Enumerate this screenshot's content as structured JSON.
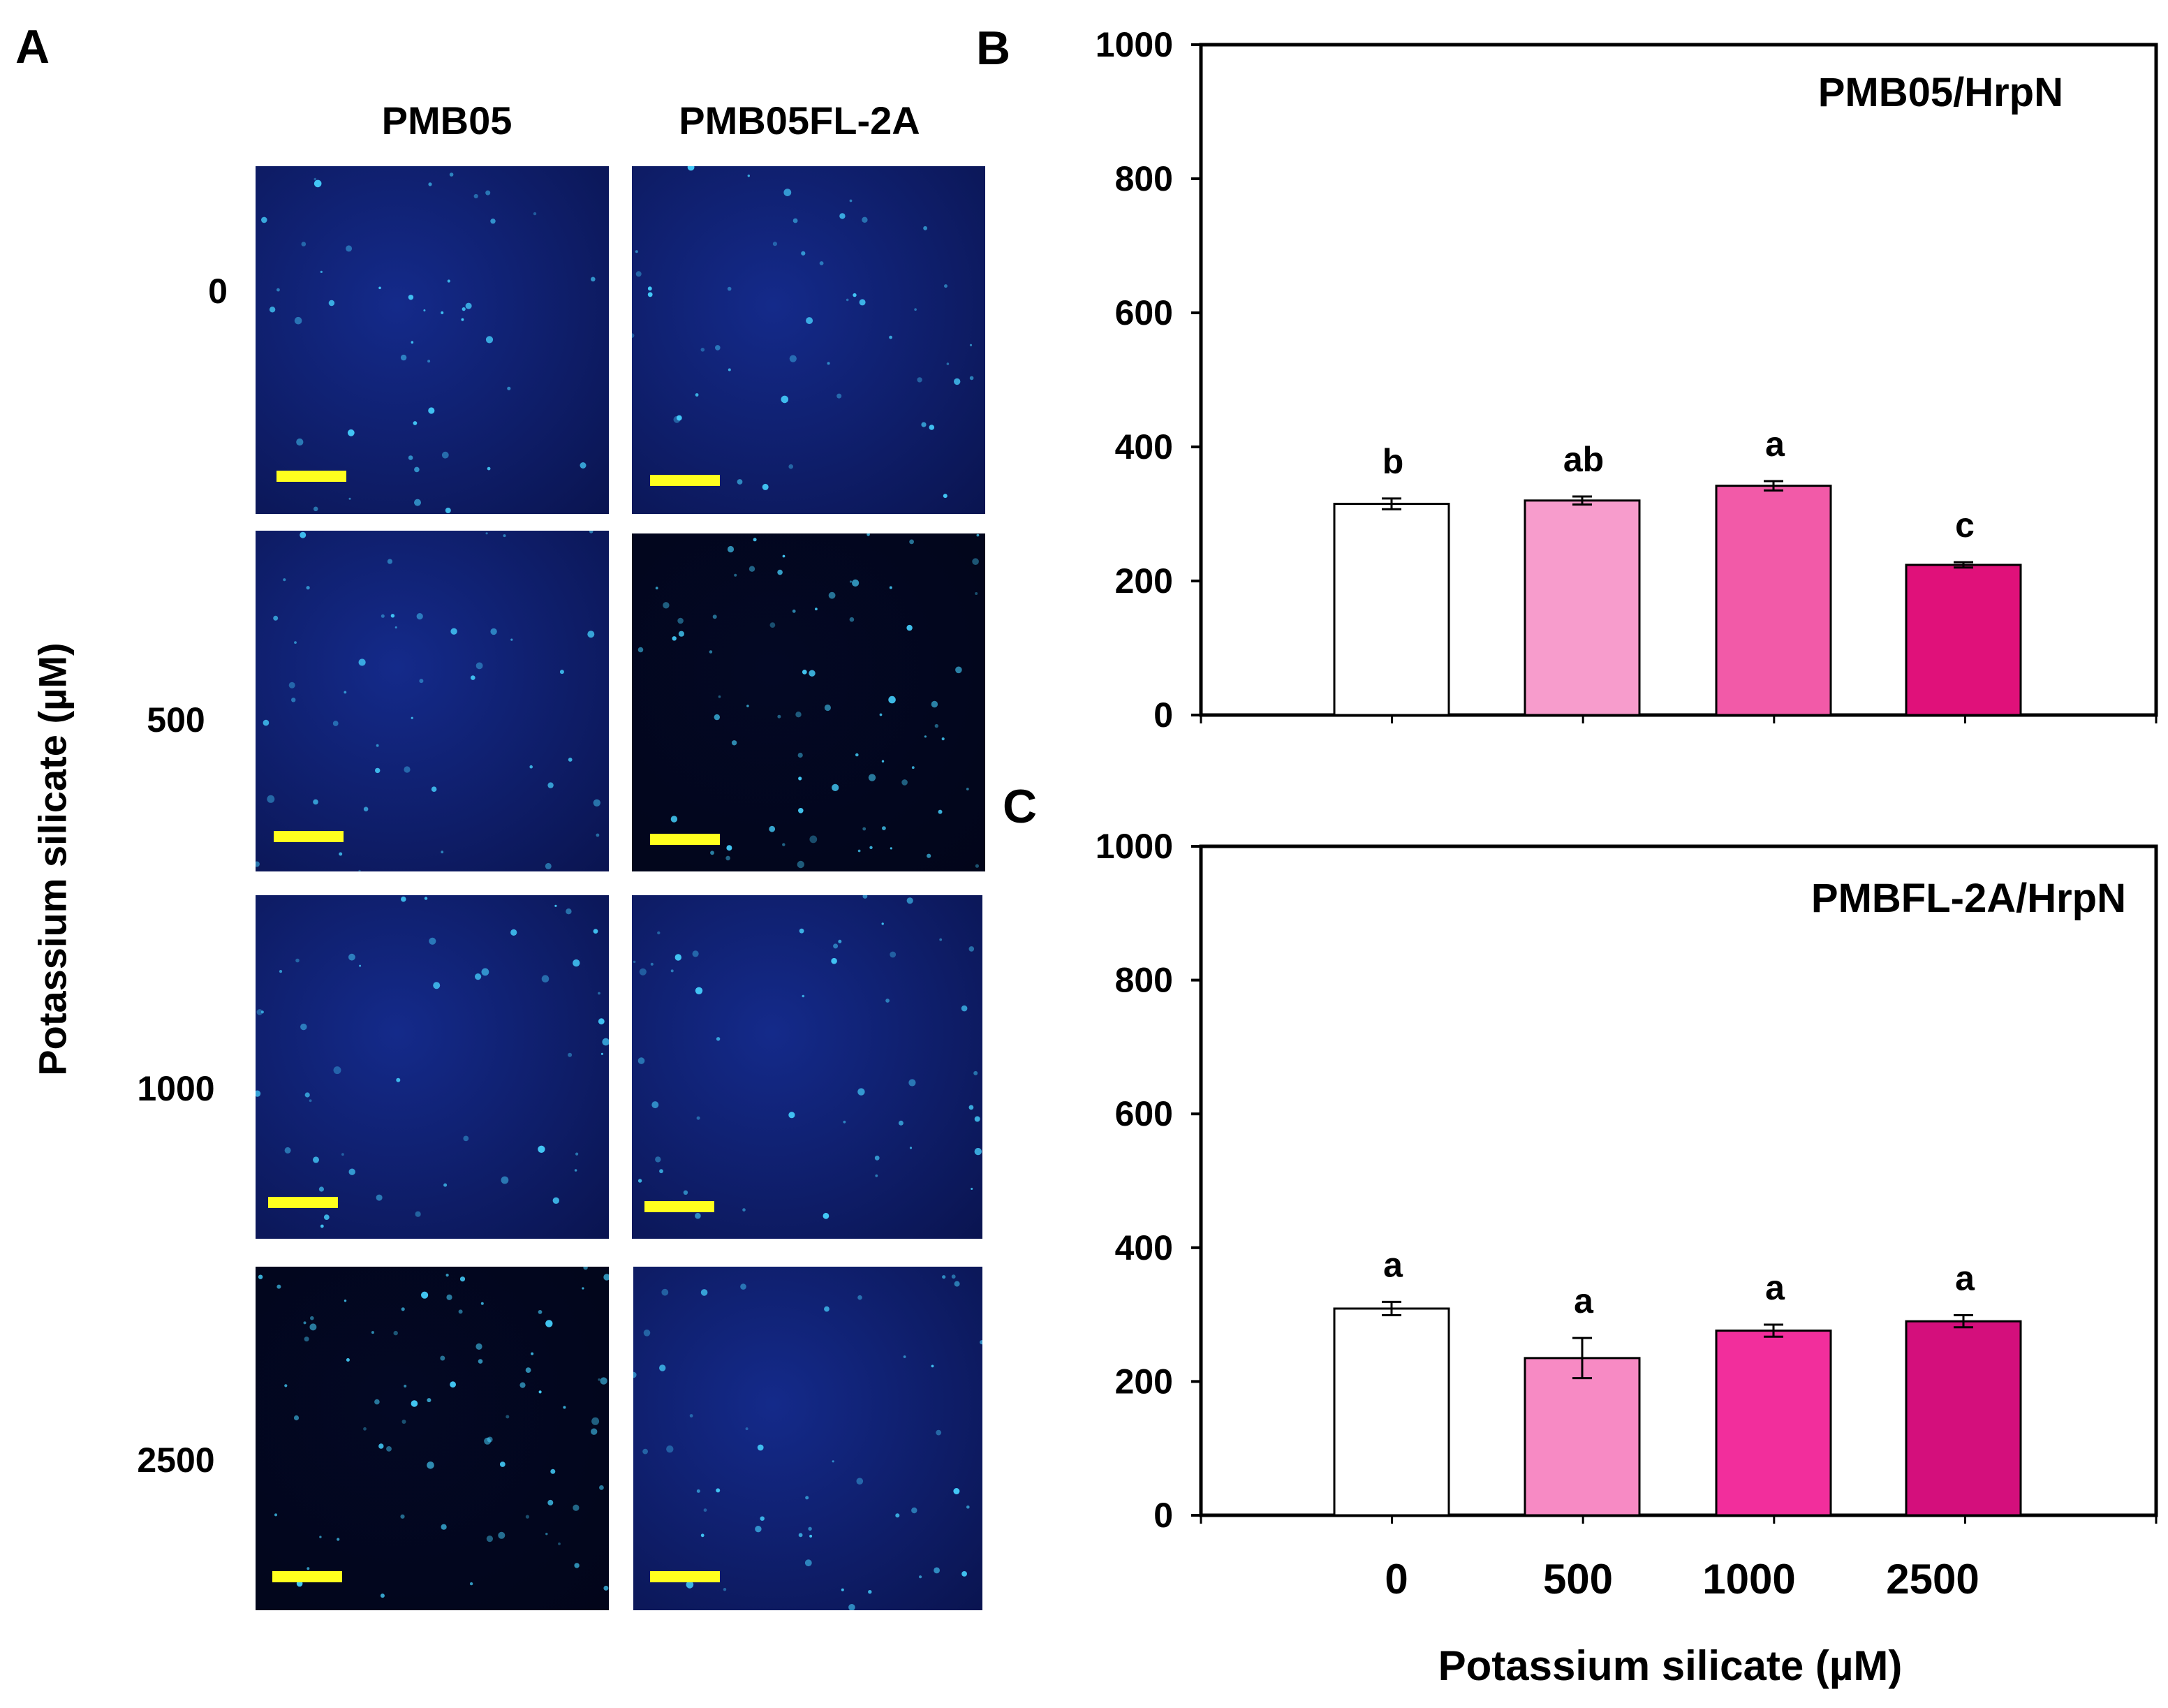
{
  "panel_a": {
    "letter": "A",
    "columns": [
      "PMB05",
      "PMB05FL-2A"
    ],
    "rows": [
      "0",
      "500",
      "1000",
      "2500"
    ],
    "y_axis_title": "Potassium silicate (µM)",
    "image_description_colors": {
      "background_dark": "#0a1450",
      "background_mid": "#142a8a",
      "spot": "#46d2ff",
      "scale_bar": "#ffff1e"
    }
  },
  "chart_data": [
    {
      "panel": "B",
      "type": "bar",
      "title": "PMB05/HrpN",
      "categories": [
        "0",
        "500",
        "1000",
        "2500"
      ],
      "values": [
        315,
        320,
        342,
        224
      ],
      "errors": [
        8,
        6,
        7,
        4
      ],
      "significance_letters": [
        "b",
        "ab",
        "a",
        "c"
      ],
      "bar_colors": [
        "#ffffff",
        "#f79ccc",
        "#f25aa8",
        "#e0117a"
      ],
      "ylim": [
        0,
        1000
      ],
      "yticks": [
        "0",
        "200",
        "400",
        "600",
        "800",
        "1000"
      ],
      "xlabel": "",
      "ylabel": ""
    },
    {
      "panel": "C",
      "type": "bar",
      "title": "PMBFL-2A/HrpN",
      "categories": [
        "0",
        "500",
        "1000",
        "2500"
      ],
      "values": [
        309,
        235,
        276,
        290
      ],
      "errors": [
        10,
        30,
        9,
        9
      ],
      "significance_letters": [
        "a",
        "a",
        "a",
        "a"
      ],
      "bar_colors": [
        "#ffffff",
        "#f78ac4",
        "#f22e9c",
        "#d40f7c"
      ],
      "ylim": [
        0,
        1000
      ],
      "yticks": [
        "0",
        "200",
        "400",
        "600",
        "800",
        "1000"
      ],
      "xlabel": "Potassium silicate (µM)",
      "xtick_labels": [
        "0",
        "500",
        "1000",
        "2500"
      ],
      "ylabel": ""
    }
  ]
}
